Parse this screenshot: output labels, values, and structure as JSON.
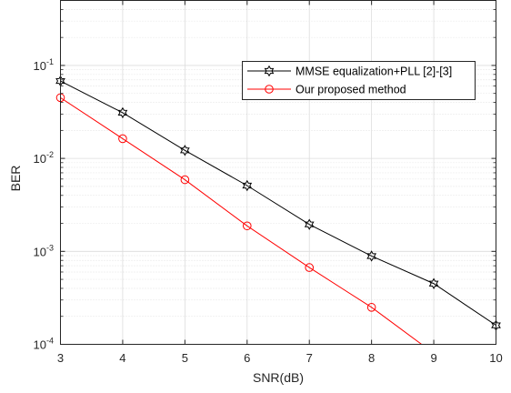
{
  "chart_data": {
    "type": "line",
    "xlabel": "SNR(dB)",
    "ylabel": "BER",
    "xlim": [
      3,
      10
    ],
    "ylim": [
      0.0001,
      0.5
    ],
    "yscale": "log",
    "grid": true,
    "minor_grid": true,
    "legend_position": "upper-right",
    "x_ticks": [
      3,
      4,
      5,
      6,
      7,
      8,
      9,
      10
    ],
    "y_ticks": [
      {
        "base": "10",
        "exp": "-4",
        "value": 0.0001
      },
      {
        "base": "10",
        "exp": "-3",
        "value": 0.001
      },
      {
        "base": "10",
        "exp": "-2",
        "value": 0.01
      },
      {
        "base": "10",
        "exp": "-1",
        "value": 0.1
      }
    ],
    "series": [
      {
        "name": "MMSE equalization+PLL [2]-[3]",
        "color": "#000000",
        "marker": "hexagram",
        "x": [
          3,
          4,
          5,
          6,
          7,
          8,
          9,
          10
        ],
        "y": [
          0.068,
          0.031,
          0.0122,
          0.0051,
          0.00195,
          0.00089,
          0.00045,
          0.00016
        ]
      },
      {
        "name": "Our proposed method",
        "color": "#ff0000",
        "marker": "circle",
        "x": [
          3,
          4,
          5,
          6,
          7,
          8,
          9
        ],
        "y": [
          0.045,
          0.0163,
          0.0059,
          0.00188,
          0.00067,
          0.00025,
          8e-05
        ],
        "marker_x": [
          3,
          4,
          5,
          6,
          7,
          8
        ]
      }
    ]
  }
}
